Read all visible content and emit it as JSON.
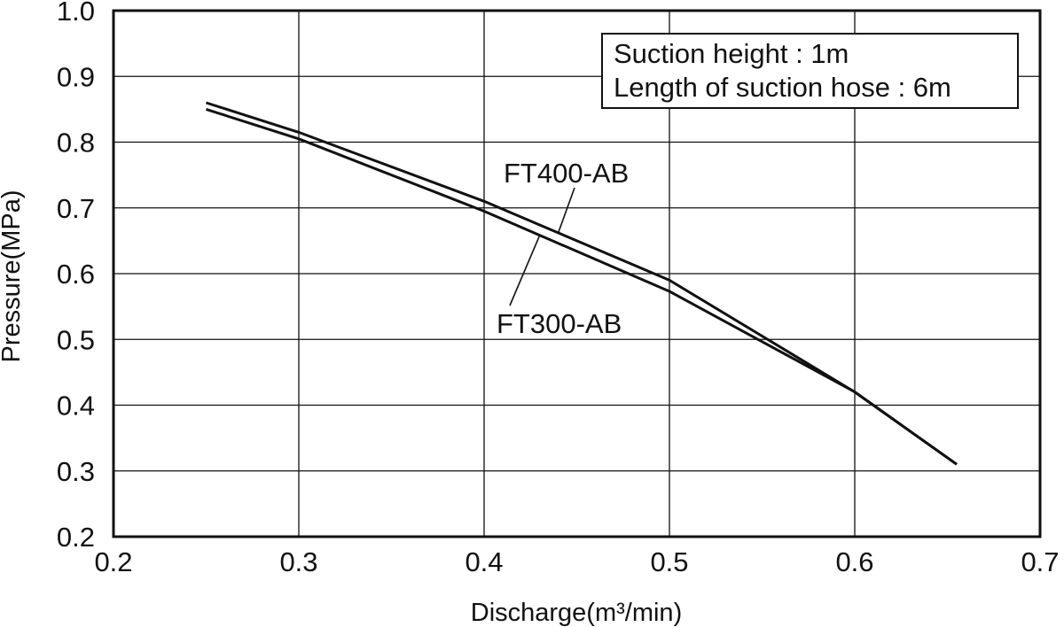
{
  "chart_data": {
    "type": "line",
    "xlabel": "Discharge(m³/min)",
    "ylabel": "Pressure(MPa)",
    "xlim": [
      0.2,
      0.7
    ],
    "ylim": [
      0.2,
      1.0
    ],
    "x_ticks": [
      "0.2",
      "0.3",
      "0.4",
      "0.5",
      "0.6",
      "0.7"
    ],
    "y_ticks": [
      "0.2",
      "0.3",
      "0.4",
      "0.5",
      "0.6",
      "0.7",
      "0.8",
      "0.9",
      "1.0"
    ],
    "grid": true,
    "annotation_lines": [
      "Suction height : 1m",
      "Length of suction hose : 6m"
    ],
    "series": [
      {
        "name": "FT400-AB",
        "x": [
          0.25,
          0.3,
          0.4,
          0.5,
          0.6,
          0.655
        ],
        "y": [
          0.86,
          0.815,
          0.71,
          0.59,
          0.42,
          0.31
        ]
      },
      {
        "name": "FT300-AB",
        "x": [
          0.25,
          0.3,
          0.4,
          0.5,
          0.6,
          0.655
        ],
        "y": [
          0.85,
          0.805,
          0.695,
          0.573,
          0.42,
          0.31
        ]
      }
    ],
    "line_color": "#111111"
  }
}
